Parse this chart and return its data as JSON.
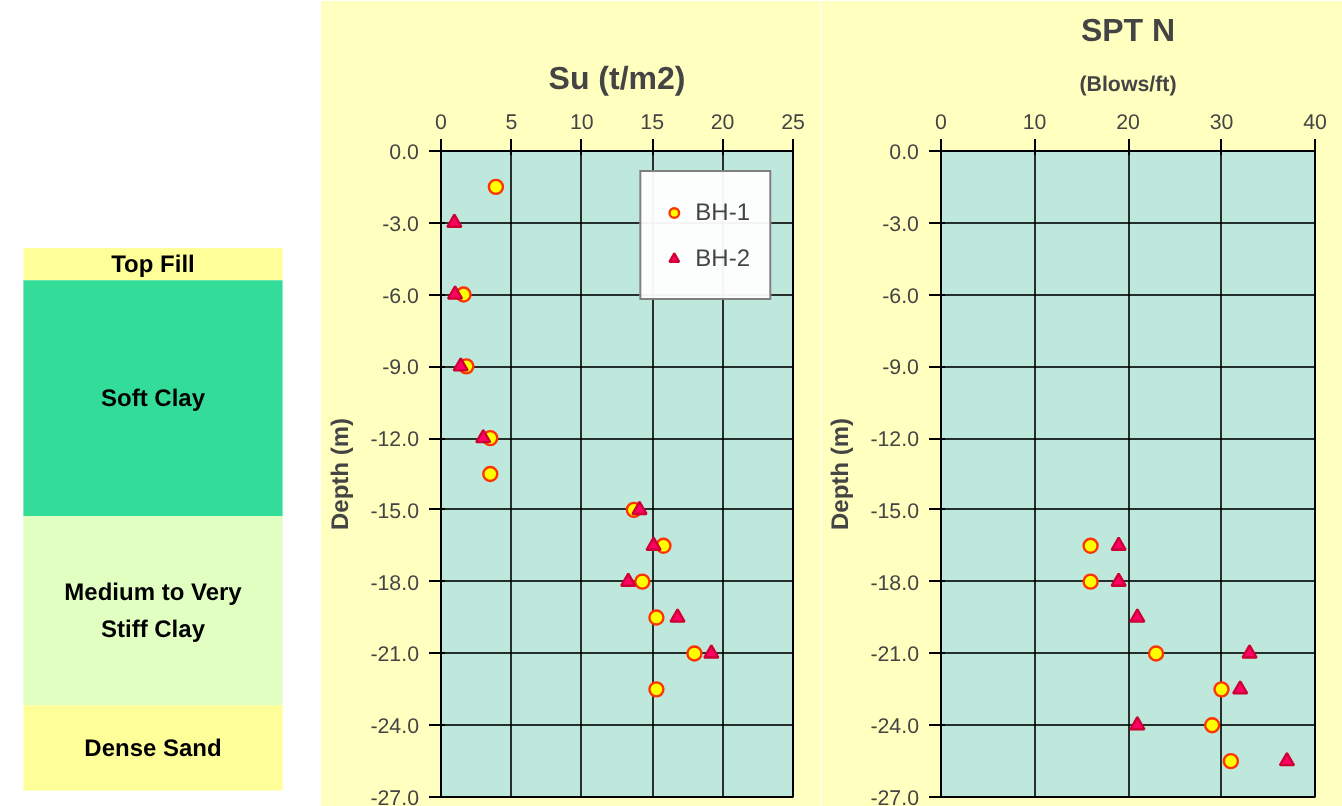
{
  "chart_data": [
    {
      "type": "other",
      "annotations": [
        "Top Fill",
        "Soft Clay",
        "Medium to Very\nStiff Clay",
        "Dense Sand"
      ],
      "colors": [
        "#ffff99",
        "#33dd99",
        "#e0ffc0",
        "#ffff99"
      ]
    },
    {
      "type": "scatter",
      "title": "Su (t/m2)",
      "ylabel": "Depth (m)",
      "xlim": [
        0,
        25
      ],
      "xticks": [
        0,
        5,
        10,
        15,
        20,
        25
      ],
      "ylim": [
        -27,
        0
      ],
      "yticks": [
        {
          "value": 0,
          "label": "0.0"
        },
        {
          "value": -3,
          "label": "-3.0"
        },
        {
          "value": -6,
          "label": "-6.0"
        },
        {
          "value": -9,
          "label": "-9.0"
        },
        {
          "value": -12,
          "label": "-12.0"
        },
        {
          "value": -15,
          "label": "-15.0"
        },
        {
          "value": -18,
          "label": "-18.0"
        },
        {
          "value": -21,
          "label": "-21.0"
        },
        {
          "value": -24,
          "label": "-24.0"
        },
        {
          "value": -27,
          "label": "-27.0"
        }
      ],
      "grid": true,
      "legend": "top right",
      "series": [
        {
          "name": "BH-1",
          "color": "#ffff00",
          "marker": "circle",
          "x": [
            3.9,
            null,
            1.6,
            1.8,
            3.5,
            3.5,
            13.7,
            15.8,
            14.3,
            15.3,
            18.0,
            15.3
          ],
          "values": [
            -1.5,
            null,
            -6,
            -9,
            -12,
            -13.5,
            -15,
            -16.5,
            -18,
            -19.5,
            -21,
            -22.5
          ]
        },
        {
          "name": "BH-2",
          "color": "#ff0066",
          "marker": "triangle",
          "x": [
            0.95,
            1.0,
            1.4,
            3.0,
            14.1,
            15.1,
            13.3,
            16.8,
            19.2
          ],
          "values": [
            -3,
            -6,
            -9,
            -12,
            -15,
            -16.5,
            -18,
            -19.5,
            -21
          ]
        }
      ]
    },
    {
      "type": "scatter",
      "title": "SPT N",
      "subtitle": "(Blows/ft)",
      "ylabel": "Depth (m)",
      "xlim": [
        0,
        40
      ],
      "xticks": [
        0,
        10,
        20,
        30,
        40
      ],
      "ylim": [
        -27,
        0
      ],
      "yticks": [
        {
          "value": 0,
          "label": "0.0"
        },
        {
          "value": -3,
          "label": "-3.0"
        },
        {
          "value": -6,
          "label": "-6.0"
        },
        {
          "value": -9,
          "label": "-9.0"
        },
        {
          "value": -12,
          "label": "-12.0"
        },
        {
          "value": -15,
          "label": "-15.0"
        },
        {
          "value": -18,
          "label": "-18.0"
        },
        {
          "value": -21,
          "label": "-21.0"
        },
        {
          "value": -24,
          "label": "-24.0"
        },
        {
          "value": -27,
          "label": "-27.0"
        }
      ],
      "grid": true,
      "series": [
        {
          "color": "#ffff00",
          "marker": "circle",
          "x": [
            16,
            16,
            23,
            30,
            29,
            31
          ],
          "values": [
            -16.5,
            -18,
            -21,
            -22.5,
            -24,
            -25.5
          ]
        },
        {
          "color": "#ff0066",
          "marker": "triangle",
          "x": [
            19,
            19,
            21,
            33,
            32,
            21,
            37
          ],
          "values": [
            -16.5,
            -18,
            -19.5,
            -21,
            -22.5,
            -24,
            -25.5
          ]
        }
      ]
    }
  ]
}
